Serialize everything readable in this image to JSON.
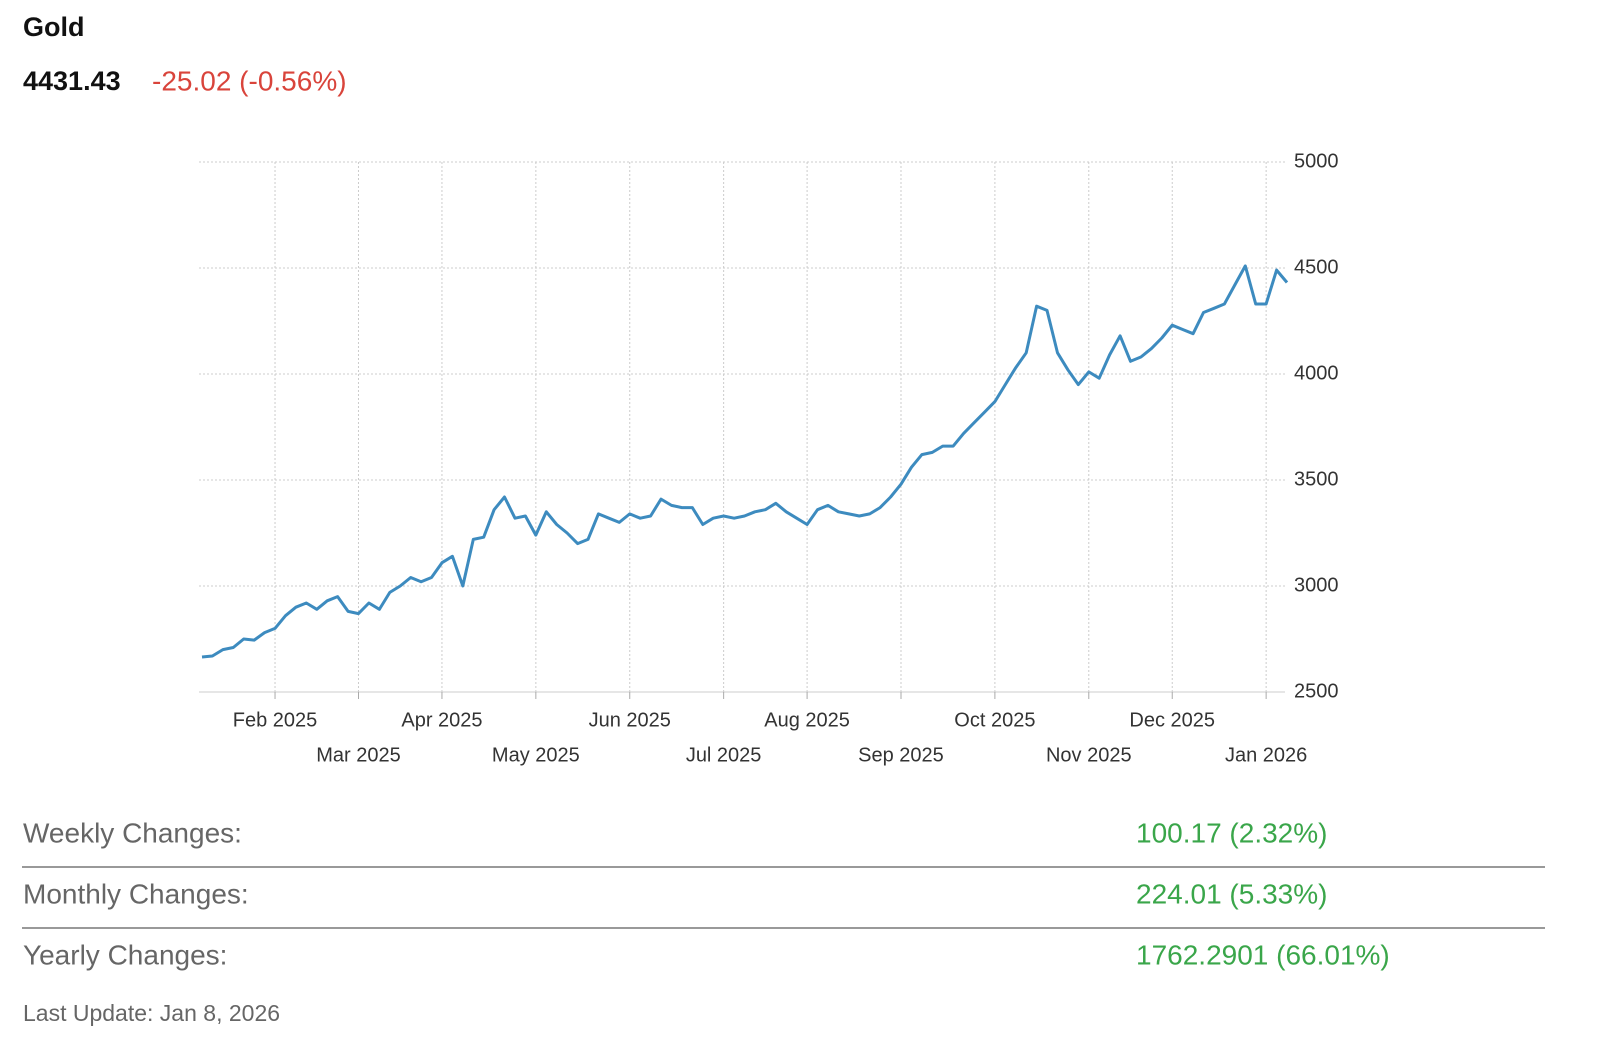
{
  "header": {
    "title": "Gold",
    "price": "4431.43",
    "change": "-25.02 (-0.56%)"
  },
  "chart_data": {
    "type": "line",
    "categories": [
      null,
      null,
      null,
      null,
      null,
      null,
      null,
      "Feb 2025",
      null,
      null,
      null,
      null,
      null,
      null,
      null,
      "Mar 2025",
      null,
      null,
      null,
      null,
      null,
      null,
      null,
      "Apr 2025",
      null,
      null,
      null,
      null,
      null,
      null,
      null,
      null,
      "May 2025",
      null,
      null,
      null,
      null,
      null,
      null,
      null,
      null,
      "Jun 2025",
      null,
      null,
      null,
      null,
      null,
      null,
      null,
      null,
      "Jul 2025",
      null,
      null,
      null,
      null,
      null,
      null,
      null,
      "Aug 2025",
      null,
      null,
      null,
      null,
      null,
      null,
      null,
      null,
      "Sep 2025",
      null,
      null,
      null,
      null,
      null,
      null,
      null,
      null,
      "Oct 2025",
      null,
      null,
      null,
      null,
      null,
      null,
      null,
      null,
      "Nov 2025",
      null,
      null,
      null,
      null,
      null,
      null,
      null,
      "Dec 2025",
      null,
      null,
      null,
      null,
      null,
      null,
      null,
      null,
      "Jan 2026",
      null,
      null
    ],
    "values": [
      2665,
      2670,
      2700,
      2710,
      2750,
      2745,
      2780,
      2800,
      2860,
      2900,
      2920,
      2890,
      2930,
      2950,
      2880,
      2870,
      2920,
      2890,
      2970,
      3000,
      3040,
      3020,
      3040,
      3110,
      3140,
      3000,
      3220,
      3230,
      3360,
      3420,
      3320,
      3330,
      3240,
      3350,
      3290,
      3250,
      3200,
      3220,
      3340,
      3320,
      3300,
      3340,
      3320,
      3330,
      3410,
      3380,
      3370,
      3370,
      3290,
      3320,
      3330,
      3320,
      3330,
      3350,
      3360,
      3390,
      3350,
      3320,
      3290,
      3360,
      3380,
      3350,
      3340,
      3330,
      3340,
      3370,
      3420,
      3480,
      3560,
      3620,
      3630,
      3660,
      3660,
      3720,
      3770,
      3820,
      3870,
      3950,
      4030,
      4100,
      4320,
      4300,
      4100,
      4020,
      3950,
      4010,
      3980,
      4090,
      4180,
      4060,
      4080,
      4120,
      4170,
      4230,
      4210,
      4190,
      4290,
      4310,
      4330,
      4420,
      4510,
      4330,
      4330,
      4490,
      4431.43
    ],
    "color": "#3d8bbf",
    "ylim": [
      2500,
      5000
    ],
    "yticks": [
      2500,
      3000,
      3500,
      4000,
      4500,
      5000
    ],
    "grid": true
  },
  "stats": [
    {
      "label": "Weekly Changes:",
      "value": "100.17 (2.32%)"
    },
    {
      "label": "Monthly Changes:",
      "value": "224.01 (5.33%)"
    },
    {
      "label": "Yearly Changes:",
      "value": "1762.2901 (66.01%)"
    }
  ],
  "footer": "Last Update: Jan 8, 2026"
}
